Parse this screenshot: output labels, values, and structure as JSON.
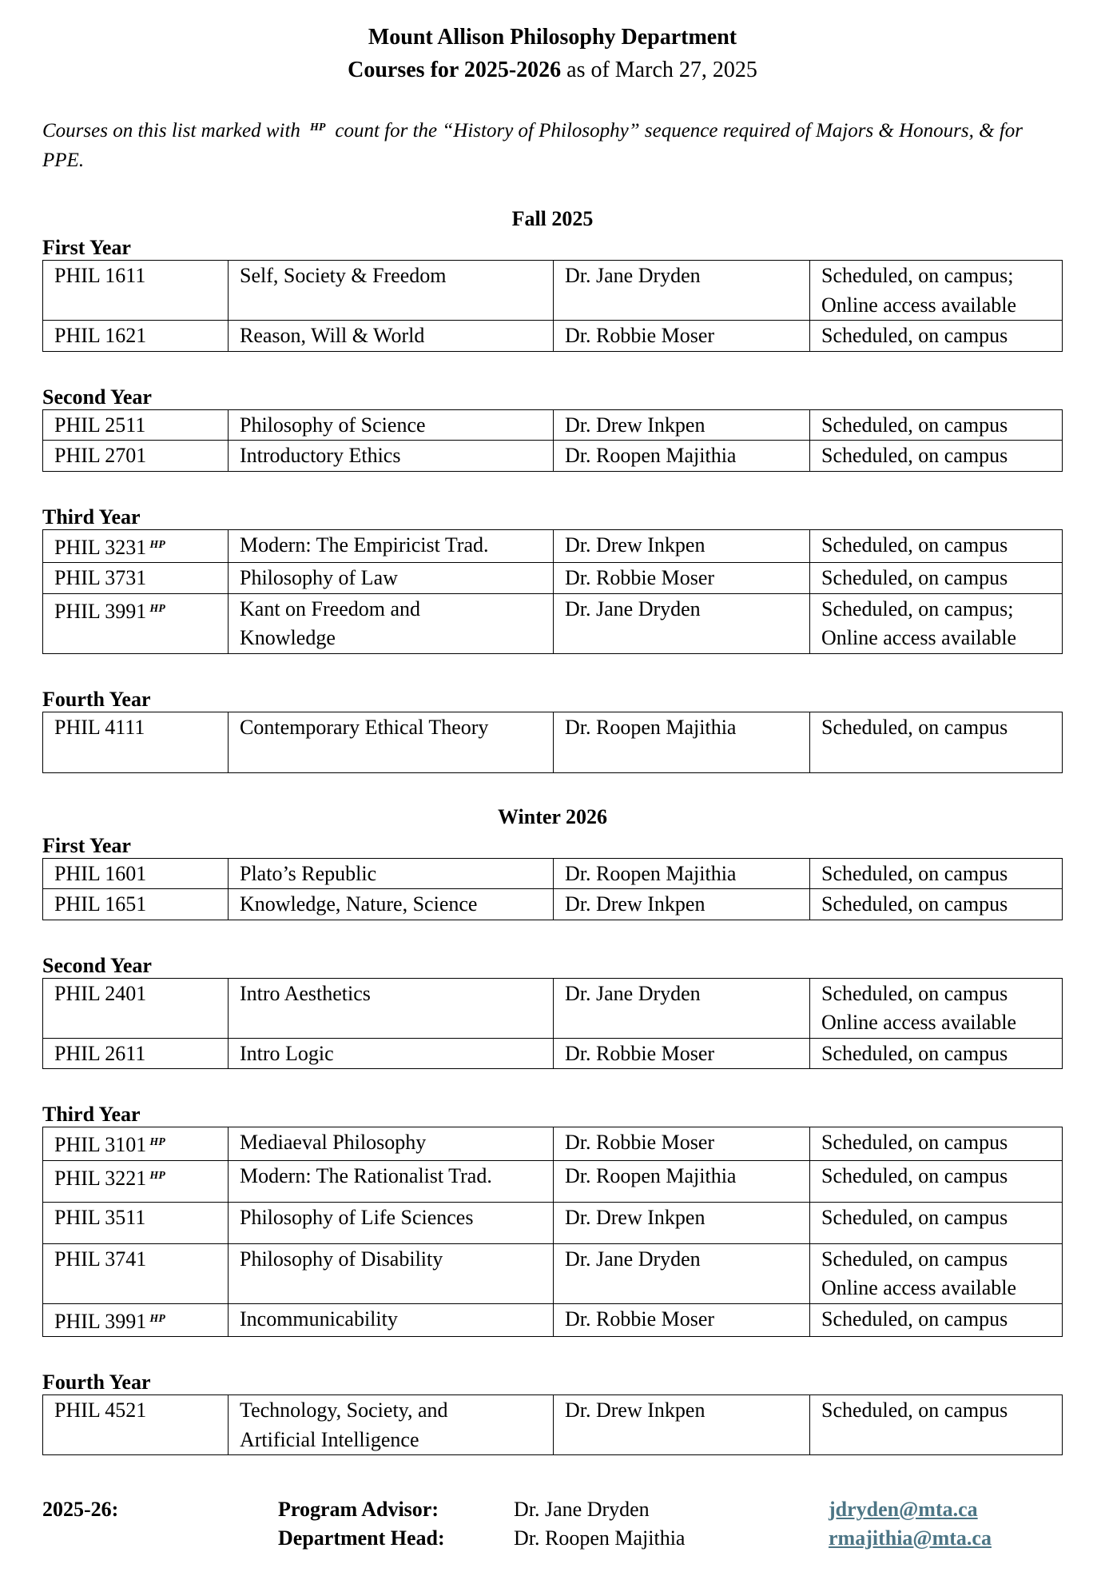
{
  "header": {
    "title": "Mount Allison Philosophy Department",
    "subtitle_bold": "Courses for 2025-2026",
    "subtitle_rest": "as of March 27, 2025"
  },
  "intro": {
    "before": "Courses on this list marked with",
    "marker": "HP",
    "after": "count for the “History of Philosophy” sequence required of Majors & Honours, & for PPE."
  },
  "terms": [
    {
      "title": "Fall 2025",
      "years": [
        {
          "label": "First Year",
          "rows": [
            {
              "code": "PHIL 1611",
              "hp": "",
              "title": "Self, Society & Freedom",
              "instructor": "Dr. Jane Dryden",
              "delivery": "Scheduled, on campus;\nOnline access available"
            },
            {
              "code": "PHIL 1621",
              "hp": "",
              "title": "Reason, Will & World",
              "instructor": "Dr. Robbie Moser",
              "delivery": "Scheduled, on campus"
            }
          ]
        },
        {
          "label": "Second Year",
          "rows": [
            {
              "code": "PHIL 2511",
              "hp": "",
              "title": "Philosophy of Science",
              "instructor": "Dr. Drew Inkpen",
              "delivery": "Scheduled, on campus"
            },
            {
              "code": "PHIL 2701",
              "hp": "",
              "title": "Introductory Ethics",
              "instructor": "Dr. Roopen Majithia",
              "delivery": "Scheduled, on campus"
            }
          ]
        },
        {
          "label": "Third Year",
          "rows": [
            {
              "code": "PHIL 3231",
              "hp": "HP",
              "title": "Modern: The Empiricist Trad.",
              "instructor": "Dr. Drew Inkpen",
              "delivery": "Scheduled, on campus"
            },
            {
              "code": "PHIL 3731",
              "hp": "",
              "title": "Philosophy of Law",
              "instructor": "Dr. Robbie Moser",
              "delivery": "Scheduled, on campus"
            },
            {
              "code": "PHIL 3991",
              "hp": "HP",
              "title": "Kant on Freedom and\nKnowledge",
              "instructor": "Dr. Jane Dryden",
              "delivery": "Scheduled, on campus;\nOnline access available"
            }
          ]
        },
        {
          "label": "Fourth Year",
          "rows": [
            {
              "code": "PHIL 4111",
              "hp": "",
              "title": "Contemporary Ethical Theory",
              "instructor": "Dr. Roopen Majithia",
              "delivery": "Scheduled, on campus"
            }
          ]
        }
      ]
    },
    {
      "title": "Winter 2026",
      "years": [
        {
          "label": "First Year",
          "rows": [
            {
              "code": "PHIL 1601",
              "hp": "",
              "title": "Plato’s Republic",
              "instructor": "Dr. Roopen Majithia",
              "delivery": "Scheduled, on campus"
            },
            {
              "code": "PHIL 1651",
              "hp": "",
              "title": "Knowledge, Nature, Science",
              "instructor": "Dr. Drew Inkpen",
              "delivery": "Scheduled, on campus"
            }
          ]
        },
        {
          "label": "Second Year",
          "rows": [
            {
              "code": "PHIL 2401",
              "hp": "",
              "title": "Intro Aesthetics",
              "instructor": "Dr. Jane Dryden",
              "delivery": "Scheduled, on campus\nOnline access available"
            },
            {
              "code": "PHIL 2611",
              "hp": "",
              "title": "Intro Logic",
              "instructor": "Dr. Robbie Moser",
              "delivery": "Scheduled, on campus"
            }
          ]
        },
        {
          "label": "Third Year",
          "rows": [
            {
              "code": "PHIL 3101",
              "hp": "HP",
              "title": "Mediaeval Philosophy",
              "instructor": "Dr. Robbie Moser",
              "delivery": "Scheduled, on campus"
            },
            {
              "code": "PHIL 3221",
              "hp": "HP",
              "title": "Modern: The Rationalist Trad.",
              "instructor": "Dr. Roopen Majithia",
              "delivery": "Scheduled, on campus"
            },
            {
              "code": "PHIL 3511",
              "hp": "",
              "title": "Philosophy of Life Sciences",
              "instructor": "Dr. Drew Inkpen",
              "delivery": "Scheduled, on campus"
            },
            {
              "code": "PHIL 3741",
              "hp": "",
              "title": "Philosophy of Disability",
              "instructor": "Dr. Jane Dryden",
              "delivery": "Scheduled, on campus\nOnline access available"
            },
            {
              "code": "PHIL 3991",
              "hp": "HP",
              "title": "Incommunicability",
              "instructor": "Dr. Robbie Moser",
              "delivery": "Scheduled, on campus"
            }
          ]
        },
        {
          "label": "Fourth Year",
          "rows": [
            {
              "code": "PHIL 4521",
              "hp": "",
              "title": "Technology, Society, and\nArtificial Intelligence",
              "instructor": "Dr. Drew Inkpen",
              "delivery": "Scheduled, on campus"
            }
          ]
        }
      ]
    }
  ],
  "footer": {
    "year": "2025-26:",
    "contacts": [
      {
        "role": "Program Advisor:",
        "name": "Dr. Jane Dryden",
        "email": "jdryden@mta.ca"
      },
      {
        "role": "Department Head:",
        "name": "Dr. Roopen Majithia",
        "email": "rmajithia@mta.ca"
      }
    ]
  }
}
